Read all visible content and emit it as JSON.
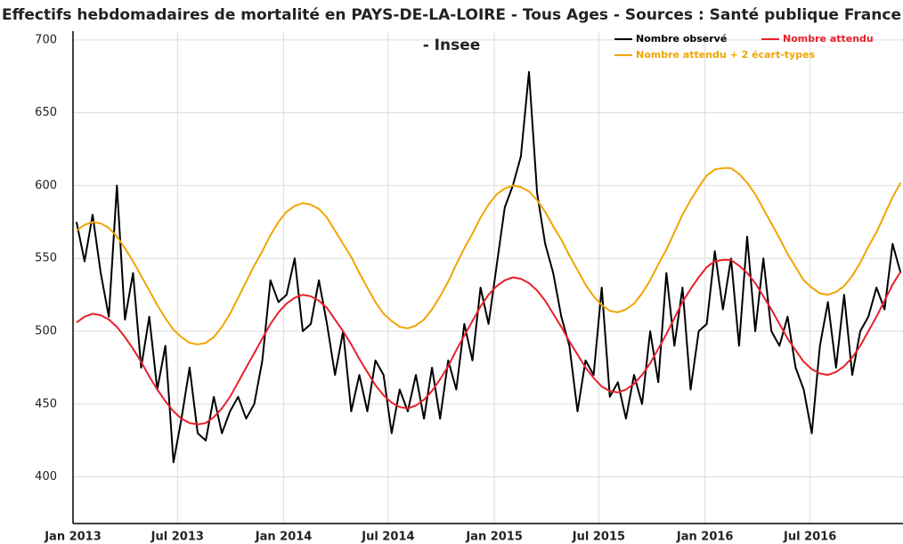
{
  "chart_data": {
    "type": "line",
    "title": "Effectifs hebdomadaires de mortalité en PAYS-DE-LA-LOIRE - Tous Ages - Sources : Santé publique France - Insee",
    "x": [
      "2013-01-07",
      "2013-01-21",
      "2013-02-04",
      "2013-02-18",
      "2013-03-04",
      "2013-03-18",
      "2013-04-01",
      "2013-04-15",
      "2013-04-29",
      "2013-05-13",
      "2013-05-27",
      "2013-06-10",
      "2013-06-24",
      "2013-07-08",
      "2013-07-22",
      "2013-08-05",
      "2013-08-19",
      "2013-09-02",
      "2013-09-16",
      "2013-09-30",
      "2013-10-14",
      "2013-10-28",
      "2013-11-11",
      "2013-11-25",
      "2013-12-09",
      "2013-12-23",
      "2014-01-06",
      "2014-01-20",
      "2014-02-03",
      "2014-02-17",
      "2014-03-03",
      "2014-03-17",
      "2014-03-31",
      "2014-04-14",
      "2014-04-28",
      "2014-05-12",
      "2014-05-26",
      "2014-06-09",
      "2014-06-23",
      "2014-07-07",
      "2014-07-21",
      "2014-08-04",
      "2014-08-18",
      "2014-09-01",
      "2014-09-15",
      "2014-09-29",
      "2014-10-13",
      "2014-10-27",
      "2014-11-10",
      "2014-11-24",
      "2014-12-08",
      "2014-12-22",
      "2015-01-05",
      "2015-01-19",
      "2015-02-02",
      "2015-02-16",
      "2015-03-02",
      "2015-03-16",
      "2015-03-30",
      "2015-04-13",
      "2015-04-27",
      "2015-05-11",
      "2015-05-25",
      "2015-06-08",
      "2015-06-22",
      "2015-07-06",
      "2015-07-20",
      "2015-08-03",
      "2015-08-17",
      "2015-08-31",
      "2015-09-14",
      "2015-09-28",
      "2015-10-12",
      "2015-10-26",
      "2015-11-09",
      "2015-11-23",
      "2015-12-07",
      "2015-12-21",
      "2016-01-04",
      "2016-01-18",
      "2016-02-01",
      "2016-02-15",
      "2016-02-29",
      "2016-03-14",
      "2016-03-28",
      "2016-04-11",
      "2016-04-25",
      "2016-05-09",
      "2016-05-23",
      "2016-06-06",
      "2016-06-20",
      "2016-07-04",
      "2016-07-18",
      "2016-08-01",
      "2016-08-15",
      "2016-08-29",
      "2016-09-12",
      "2016-09-26",
      "2016-10-10",
      "2016-10-24",
      "2016-11-07",
      "2016-11-21",
      "2016-12-05"
    ],
    "series": [
      {
        "name": "Nombre observé",
        "color": "#000000",
        "values": [
          575,
          548,
          580,
          540,
          510,
          600,
          508,
          540,
          475,
          510,
          460,
          490,
          410,
          440,
          475,
          430,
          425,
          455,
          430,
          445,
          455,
          440,
          450,
          480,
          535,
          520,
          525,
          550,
          500,
          505,
          535,
          505,
          470,
          500,
          445,
          470,
          445,
          480,
          470,
          430,
          460,
          445,
          470,
          440,
          475,
          440,
          480,
          460,
          505,
          480,
          530,
          505,
          545,
          585,
          600,
          620,
          678,
          595,
          560,
          540,
          510,
          490,
          445,
          480,
          470,
          530,
          455,
          465,
          440,
          470,
          450,
          500,
          465,
          540,
          490,
          530,
          460,
          500,
          505,
          555,
          515,
          550,
          490,
          565,
          500,
          550,
          500,
          490,
          510,
          475,
          460,
          430,
          490,
          520,
          475,
          525,
          470,
          500,
          510,
          530,
          515,
          560,
          540
        ]
      },
      {
        "name": "Nombre attendu",
        "color": "#e8202a",
        "values": [
          506,
          510,
          512,
          511,
          508,
          503,
          496,
          488,
          479,
          469,
          460,
          452,
          445,
          440,
          437,
          436,
          437,
          441,
          447,
          455,
          465,
          475,
          485,
          495,
          505,
          513,
          519,
          523,
          525,
          524,
          521,
          516,
          508,
          500,
          491,
          481,
          472,
          463,
          456,
          451,
          448,
          447,
          449,
          453,
          459,
          467,
          476,
          487,
          497,
          507,
          517,
          525,
          531,
          535,
          537,
          536,
          533,
          528,
          521,
          512,
          503,
          493,
          484,
          475,
          468,
          462,
          459,
          458,
          460,
          464,
          470,
          478,
          488,
          498,
          509,
          520,
          529,
          537,
          544,
          548,
          549,
          549,
          545,
          540,
          533,
          524,
          515,
          505,
          495,
          487,
          479,
          474,
          471,
          470,
          472,
          476,
          482,
          490,
          500,
          510,
          521,
          532,
          541
        ]
      },
      {
        "name": "Nombre attendu + 2 écart-types",
        "color": "#f0a500",
        "values": [
          569,
          573,
          575,
          574,
          571,
          565,
          557,
          548,
          538,
          528,
          518,
          509,
          501,
          496,
          492,
          491,
          492,
          496,
          503,
          512,
          523,
          534,
          545,
          555,
          566,
          575,
          582,
          586,
          588,
          587,
          584,
          578,
          569,
          560,
          551,
          540,
          530,
          520,
          512,
          507,
          503,
          502,
          504,
          508,
          515,
          524,
          534,
          546,
          557,
          567,
          578,
          587,
          594,
          598,
          600,
          599,
          596,
          590,
          582,
          572,
          563,
          552,
          542,
          532,
          524,
          518,
          514,
          513,
          515,
          519,
          526,
          535,
          546,
          556,
          568,
          580,
          590,
          599,
          607,
          611,
          612,
          612,
          608,
          602,
          594,
          584,
          574,
          564,
          553,
          544,
          535,
          530,
          526,
          525,
          527,
          531,
          538,
          547,
          558,
          568,
          580,
          592,
          602
        ]
      }
    ],
    "xlim": [
      "2013-01-01",
      "2016-12-09"
    ],
    "xticks": [
      {
        "value": "2013-01-01",
        "label": "Jan 2013"
      },
      {
        "value": "2013-07-01",
        "label": "Jul 2013"
      },
      {
        "value": "2014-01-01",
        "label": "Jan 2014"
      },
      {
        "value": "2014-07-01",
        "label": "Jul 2014"
      },
      {
        "value": "2015-01-01",
        "label": "Jan 2015"
      },
      {
        "value": "2015-07-01",
        "label": "Jul 2015"
      },
      {
        "value": "2016-01-01",
        "label": "Jan 2016"
      },
      {
        "value": "2016-07-01",
        "label": "Jul 2016"
      }
    ],
    "ylim": [
      368,
      706
    ],
    "yticks": [
      400,
      450,
      500,
      550,
      600,
      650,
      700
    ],
    "grid": true,
    "legend": "top-right"
  }
}
